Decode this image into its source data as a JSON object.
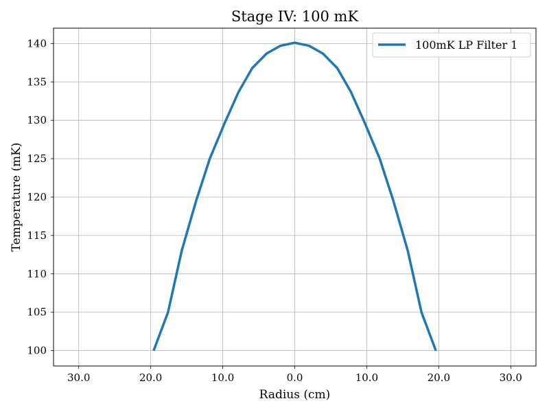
{
  "chart_data": {
    "type": "line",
    "title": "Stage IV: 100 mK",
    "xlabel": "Radius (cm)",
    "ylabel": "Temperature (mK)",
    "xlim": [
      -33.5,
      33.5
    ],
    "ylim": [
      98,
      142
    ],
    "xticks": [
      -30,
      -20,
      -10,
      0,
      10,
      20,
      30
    ],
    "xtick_labels": [
      "30.0",
      "20.0",
      "10.0",
      "0.0",
      "10.0",
      "20.0",
      "30.0"
    ],
    "yticks": [
      100,
      105,
      110,
      115,
      120,
      125,
      130,
      135,
      140
    ],
    "ytick_labels": [
      "100",
      "105",
      "110",
      "115",
      "120",
      "125",
      "130",
      "135",
      "140"
    ],
    "grid": true,
    "legend_position": "top-right",
    "series": [
      {
        "name": "100mK LP Filter 1",
        "color": "#1f77b4",
        "x": [
          -19.6,
          -17.6,
          -15.7,
          -13.7,
          -11.8,
          -9.8,
          -7.8,
          -5.9,
          -3.9,
          -2.0,
          0.0,
          2.0,
          3.9,
          5.9,
          7.8,
          9.8,
          11.8,
          13.7,
          15.7,
          17.6,
          19.6
        ],
        "y": [
          100.0,
          105.0,
          113.0,
          119.5,
          125.0,
          129.5,
          133.7,
          136.8,
          138.7,
          139.7,
          140.1,
          139.7,
          138.7,
          136.8,
          133.7,
          129.5,
          125.0,
          119.5,
          113.0,
          105.0,
          100.0
        ]
      }
    ]
  }
}
